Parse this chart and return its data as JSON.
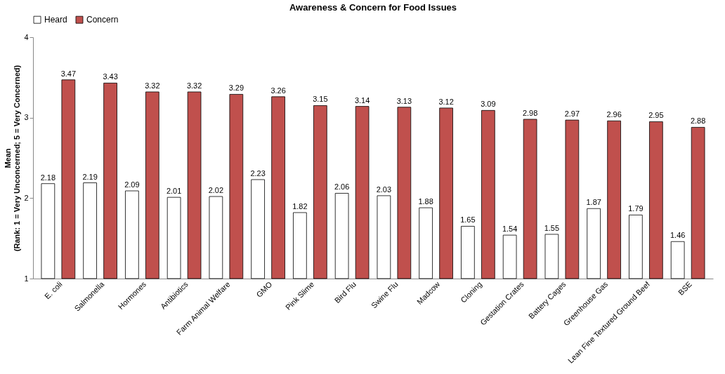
{
  "chart_data": {
    "type": "bar",
    "title": "Awareness & Concern for Food Issues",
    "ylabel": "Mean\n(Rank: 1 = Very Unconcerned; 5 = Very Concerned)",
    "categories": [
      "E. coli",
      "Salmonella",
      "Hormones",
      "Antibiotics",
      "Farm Animal Welfare",
      "GMO",
      "Pink Slime",
      "Bird Flu",
      "Swine Flu",
      "Madcow",
      "Cloning",
      "Gestation Crates",
      "Battery Cages",
      "Greenhouse Gas",
      "Lean Fine Textured Ground Beef",
      "BSE"
    ],
    "series": [
      {
        "name": "Heard",
        "color": "#ffffff",
        "values": [
          2.18,
          2.19,
          2.09,
          2.01,
          2.02,
          2.23,
          1.82,
          2.06,
          2.03,
          1.88,
          1.65,
          1.54,
          1.55,
          1.87,
          1.79,
          1.46
        ]
      },
      {
        "name": "Concern",
        "color": "#c0504d",
        "values": [
          3.47,
          3.43,
          3.32,
          3.32,
          3.29,
          3.26,
          3.15,
          3.14,
          3.13,
          3.12,
          3.09,
          2.98,
          2.97,
          2.96,
          2.95,
          2.88
        ]
      }
    ],
    "ylim": [
      1,
      4
    ],
    "yticks": [
      1,
      2,
      3,
      4
    ],
    "grid": false,
    "legend": "top",
    "data_labels": true
  }
}
